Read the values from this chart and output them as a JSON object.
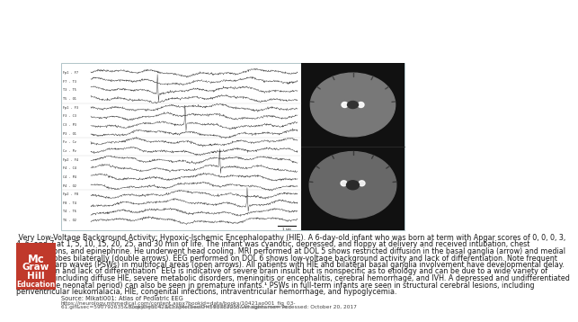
{
  "background_color": "#ffffff",
  "caption_text_lines": [
    " Very Low-Voltage Background Activity; Hypoxic-Ischemic Encephalopathy (HIE). A 6-day-old infant who was born at term with Apgar scores of 0, 0, 0, 3,",
    "4, 6, and 7 at 1, 5, 10, 15, 20, 25, and 30 min of life. The infant was cyanotic, depressed, and floppy at delivery and received intubation, chest",
    "compressions, and epinephrine. He underwent head cooling. MRI performed at DOL 5 shows restricted diffusion in the basal ganglia (arrow) and medial",
    "temporal lobes bilaterally (double arrows). EEG performed on DOL 6 shows low-voltage background activity and lack of differentiation. Note frequent",
    "positive sharp waves (PSWs) in multifocal areas (open arrows). All patients with HIE and bilateral basal ganglia involvement have developmental delay.",
    "\"Depression and lack of differentiation\" EEG is indicative of severe brain insult but is nonspecific as to etiology and can be due to a wide variety of",
    "conditions including diffuse HIE, severe metabolic disorders, meningitis or encephalitis, cerebral hemorrhage, and IVH. A depressed and undifferentiated",
    "brain (in the neonatal period) can also be seen in premature infants.¹ PSWs in full-term infants are seen in structural cerebral lesions, including",
    "periventricular leukomalacia, HIE, congenital infections, intraventricular hemorrhage, and hypoglycemia."
  ],
  "source_line": "Source: Mikati001: Atlas of Pediatric EEG",
  "url_line1": "https://neurology.mhmedical.com/content.aspx?bookid=data/books/10421ao001_fig_03-",
  "url_line2": "61.gif&sec=590792635&BookID=1042&ChapterSecID=590787255&imagename= Accessed: October 20, 2017",
  "copyright_line": "Copyright © 2017 McGraw-Hill Education. All rights reserved",
  "logo_lines": [
    "Mc",
    "Graw",
    "Hill",
    "Education"
  ],
  "logo_color": "#c0392b",
  "caption_fontsize": 5.8,
  "small_fontsize": 4.8,
  "tiny_fontsize": 4.2,
  "border_color": "#b0c4c8",
  "eeg_bg": "#ffffff",
  "mri_bg": "#111111",
  "channel_labels": [
    "Fp1 - F7",
    "F7 - T3",
    "T3 - T5",
    "T5 - O1",
    "Fp1 - F3",
    "F3 - C3",
    "C3 - P3",
    "P3 - O1",
    "Fz - Cz",
    "Cz - Pz",
    "Fp2 - F4",
    "F4 - C4",
    "C4 - P4",
    "P4 - O2",
    "Fp2 - F8",
    "F8 - T4",
    "T4 - T6",
    "T6 - O2"
  ],
  "group_breaks": [
    4,
    8,
    10,
    14
  ]
}
